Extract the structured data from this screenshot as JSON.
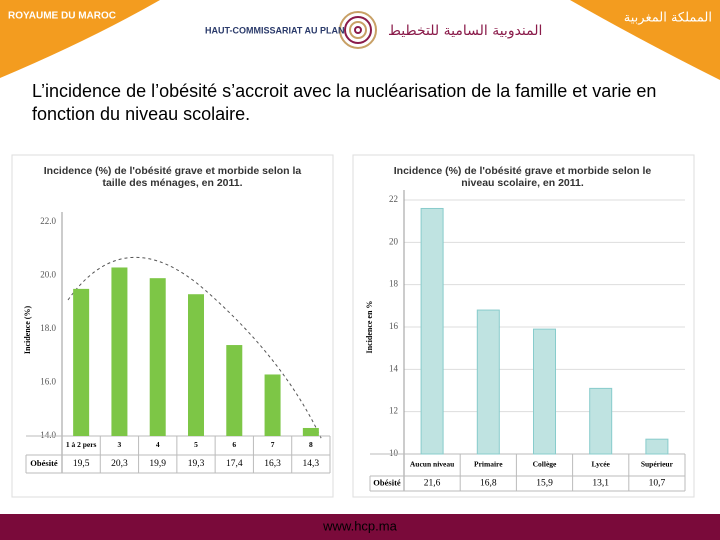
{
  "header": {
    "left": "ROYAUME DU MAROC",
    "center": "HAUT-COMMISSARIAT AU PLAN",
    "center_arabic": "المندوبية السامية للتخطيط",
    "right": "المملكة المغربية"
  },
  "title": "L’incidence de l’obésité s’accroit avec la nucléarisation de la famille et varie en fonction du niveau scolaire.",
  "footer": "www.hcp.ma",
  "chart_data": [
    {
      "type": "bar",
      "title": "Incidence (%) de l'obésité grave et morbide selon la taille des ménages, en 2011.",
      "y_label": "Incidence (%)",
      "categories": [
        "1 à 2 pers",
        "3",
        "4",
        "5",
        "6",
        "7",
        "8"
      ],
      "row_label": "Obésité",
      "values": [
        19.5,
        20.3,
        19.9,
        19.3,
        17.4,
        16.3,
        14.3
      ],
      "value_labels": [
        "19,5",
        "20,3",
        "19,9",
        "19,3",
        "17,4",
        "16,3",
        "14,3"
      ],
      "color": "#7dc646",
      "ylim": [
        14,
        22
      ],
      "yticks": [
        {
          "value": 14,
          "label": "14.0"
        },
        {
          "value": 16,
          "label": "16.0"
        },
        {
          "value": 18,
          "label": "18.0"
        },
        {
          "value": 20,
          "label": "20.0"
        },
        {
          "value": 22,
          "label": "22.0"
        }
      ],
      "grid": false
    },
    {
      "type": "bar",
      "title": "Incidence (%) de l'obésité grave et morbide selon le niveau scolaire, en 2011.",
      "y_label": "Incidence en %",
      "categories": [
        "Aucun niveau",
        "Primaire",
        "Collège",
        "Lycée",
        "Supérieur"
      ],
      "row_label": "Obésité",
      "values": [
        21.6,
        16.8,
        15.9,
        13.1,
        10.7
      ],
      "value_labels": [
        "21,6",
        "16,8",
        "15,9",
        "13,1",
        "10,7"
      ],
      "color": "#bfe3e1",
      "ylim": [
        10,
        22
      ],
      "yticks": [
        10,
        12,
        14,
        16,
        18,
        20,
        22
      ],
      "grid": true
    }
  ]
}
